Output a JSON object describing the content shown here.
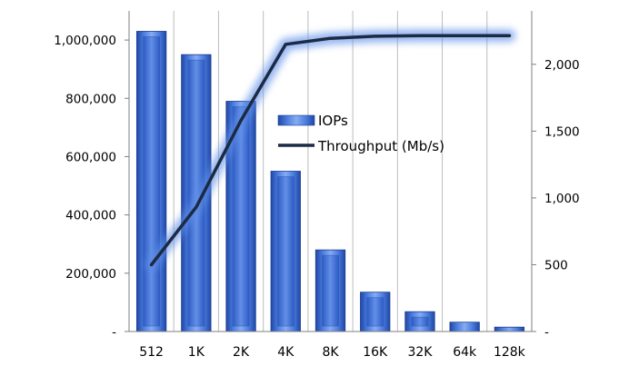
{
  "chart_data": {
    "type": "bar",
    "categories": [
      "512",
      "1K",
      "2K",
      "4K",
      "8K",
      "16K",
      "32K",
      "64k",
      "128k"
    ],
    "series": [
      {
        "name": "IOPs",
        "type": "bar",
        "axis": "left",
        "color": "#3f6fd0",
        "values": [
          1030000,
          950000,
          790000,
          550000,
          280000,
          135000,
          68000,
          32000,
          15000
        ]
      },
      {
        "name": "Throughput (Mb/s)",
        "type": "line",
        "axis": "right",
        "color": "#1c2a44",
        "values": [
          500,
          930,
          1580,
          2150,
          2195,
          2210,
          2215,
          2215,
          2215
        ]
      }
    ],
    "left_axis": {
      "ylim": [
        0,
        1100000
      ],
      "ticks": [
        0,
        200000,
        400000,
        600000,
        800000,
        1000000
      ],
      "tick_labels": [
        "-",
        "200,000",
        "400,000",
        "600,000",
        "800,000",
        "1,000,000"
      ]
    },
    "right_axis": {
      "ylim": [
        0,
        2400
      ],
      "ticks": [
        0,
        500,
        1000,
        1500,
        2000
      ],
      "tick_labels": [
        "-",
        "500",
        "1,000",
        "1,500",
        "2,000"
      ]
    },
    "legend_position": "center-right",
    "gridlines": "vertical",
    "title": "",
    "xlabel": "",
    "ylabel": ""
  }
}
